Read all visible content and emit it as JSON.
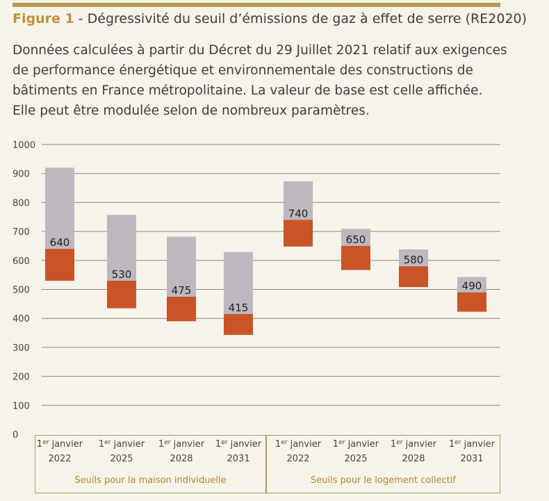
{
  "figure": {
    "label": "Figure 1",
    "title": " - Dégressivité du seuil d’émissions de gaz à effet de serre (RE2020)",
    "subtitle_lines": [
      " Données calculées à partir du Décret du 29 Juillet 2021 relatif aux exigences",
      "de performance énergétique et environnementale des constructions de",
      "bâtiments en France métropolitaine. La valeur de base est celle affichée.",
      "Elle peut être modulée selon de nombreux paramètres."
    ]
  },
  "colors": {
    "upper_bar": "#bdb8c0",
    "lower_bar": "#c95428",
    "grid": "#8a8a8a",
    "frame": "#b59a52",
    "group_label": "#b5872f"
  },
  "chart_data": {
    "type": "bar",
    "ylim": [
      0,
      1000
    ],
    "y_ticks": [
      "0",
      "100",
      "200",
      "300",
      "400",
      "500",
      "600",
      "700",
      "800",
      "900",
      "1000"
    ],
    "bars": [
      {
        "group": 0,
        "cat_sup": "er",
        "cat_line1": "janvier",
        "cat_line2": "2022",
        "value": 640,
        "value_label": "640",
        "low": 530,
        "high": 920
      },
      {
        "group": 0,
        "cat_sup": "er",
        "cat_line1": "janvier",
        "cat_line2": "2025",
        "value": 530,
        "value_label": "530",
        "low": 435,
        "high": 757
      },
      {
        "group": 0,
        "cat_sup": "er",
        "cat_line1": "janvier",
        "cat_line2": "2028",
        "value": 475,
        "value_label": "475",
        "low": 390,
        "high": 682
      },
      {
        "group": 0,
        "cat_sup": "er",
        "cat_line1": "janvier",
        "cat_line2": "2031",
        "value": 415,
        "value_label": "415",
        "low": 343,
        "high": 629
      },
      {
        "group": 1,
        "cat_sup": "er",
        "cat_line1": "janvier",
        "cat_line2": "2022",
        "value": 740,
        "value_label": "740",
        "low": 648,
        "high": 873
      },
      {
        "group": 1,
        "cat_sup": "er",
        "cat_line1": "janvier",
        "cat_line2": "2025",
        "value": 650,
        "value_label": "650",
        "low": 567,
        "high": 709
      },
      {
        "group": 1,
        "cat_sup": "er",
        "cat_line1": "janvier",
        "cat_line2": "2028",
        "value": 580,
        "value_label": "580",
        "low": 508,
        "high": 638
      },
      {
        "group": 1,
        "cat_sup": "er",
        "cat_line1": "janvier",
        "cat_line2": "2031",
        "value": 490,
        "value_label": "490",
        "low": 423,
        "high": 543
      }
    ],
    "groups": [
      "Seuils pour la maison individuelle",
      "Seuils pour le logement collectif"
    ]
  }
}
